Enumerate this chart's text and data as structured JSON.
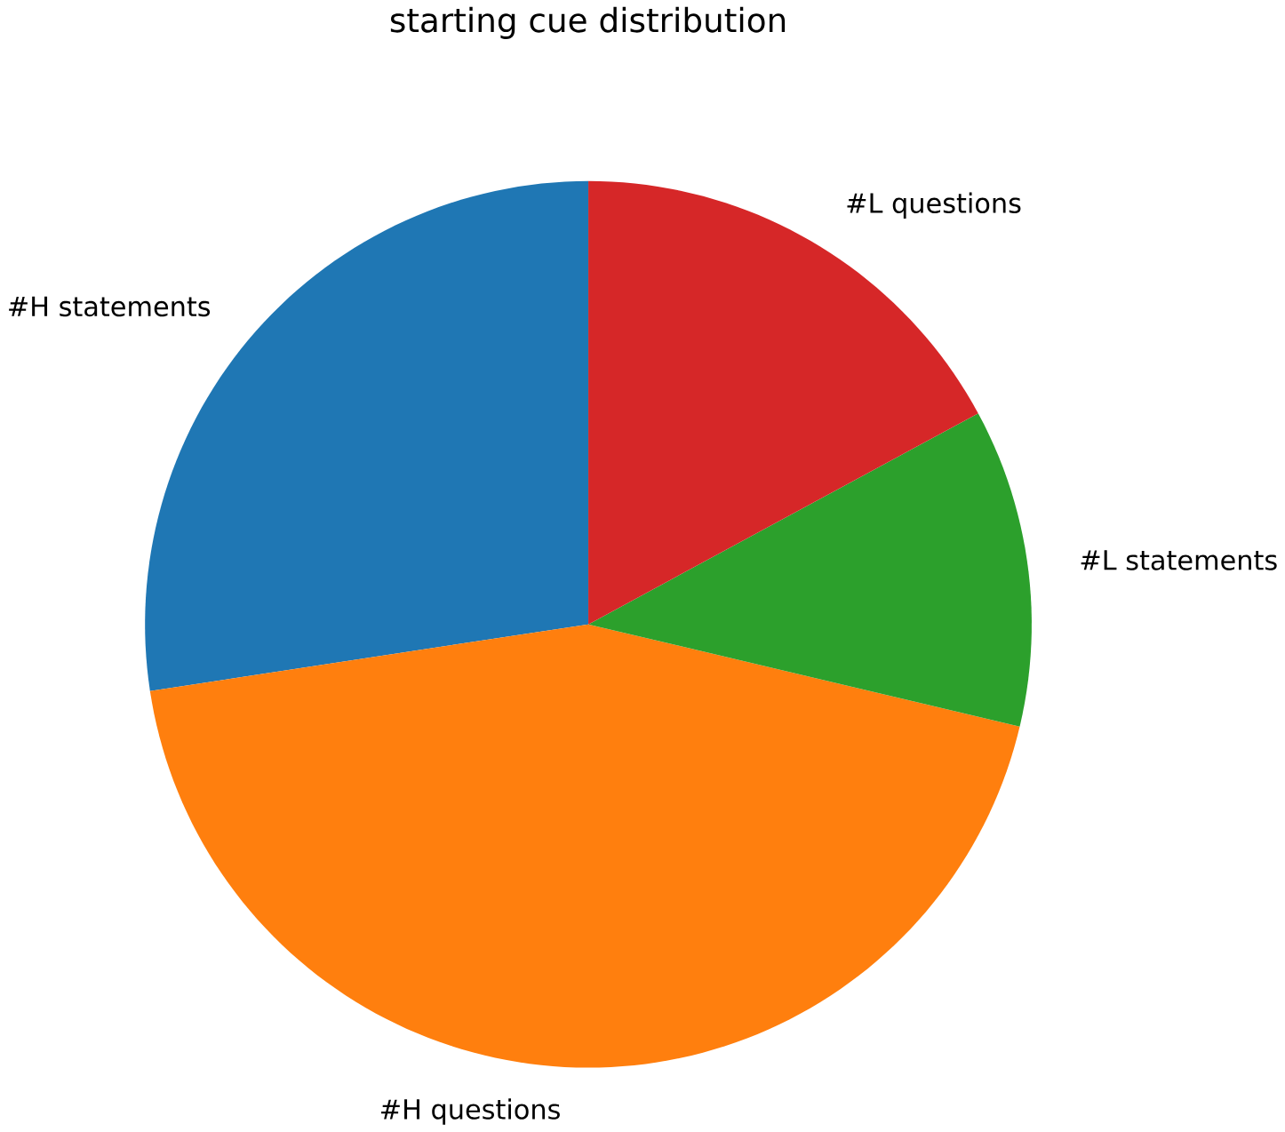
{
  "chart_data": {
    "type": "pie",
    "title": "starting cue distribution",
    "categories": [
      "#H statements",
      "#H questions",
      "#L statements",
      "#L questions"
    ],
    "values": [
      27.4,
      43.9,
      11.6,
      17.1
    ],
    "colors": [
      "#1f77b4",
      "#ff7f0e",
      "#2ca02c",
      "#d62728"
    ]
  }
}
